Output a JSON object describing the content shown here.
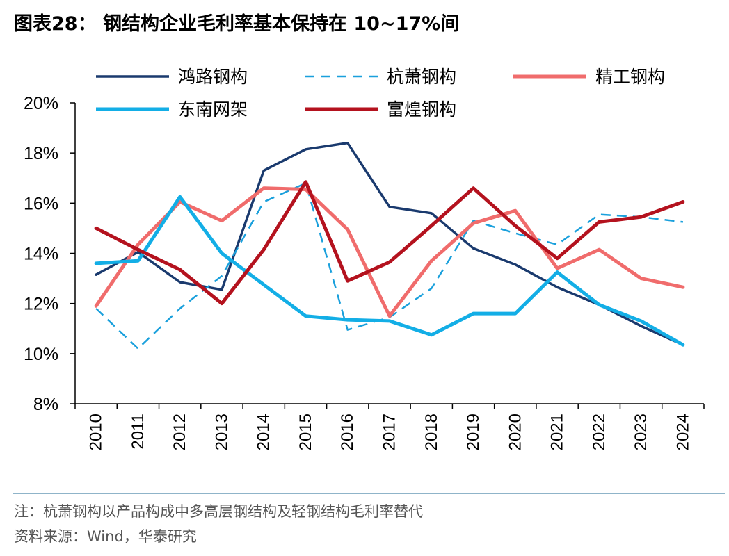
{
  "figure": {
    "title": "图表28： 钢结构企业毛利率基本保持在 10~17%间",
    "note": "注：杭萧钢构以产品构成中多高层钢结构及轻钢结构毛利率替代",
    "source": "资料来源：Wind，华泰研究"
  },
  "colors": {
    "rule": "#8fb4c9",
    "axis": "#000000"
  },
  "chart_data": {
    "type": "line",
    "x": [
      "2010",
      "2011",
      "2012",
      "2013",
      "2014",
      "2015",
      "2016",
      "2017",
      "2018",
      "2019",
      "2020",
      "2021",
      "2022",
      "2023",
      "2024"
    ],
    "ylim": [
      8,
      20
    ],
    "yticks": [
      "8%",
      "10%",
      "12%",
      "14%",
      "16%",
      "18%",
      "20%"
    ],
    "ytick_values": [
      8,
      10,
      12,
      14,
      16,
      18,
      20
    ],
    "grid": false,
    "legend_position": "top",
    "series": [
      {
        "name": "鸿路钢构",
        "color": "#1a3a6e",
        "dash": false,
        "width": 3.5,
        "values": [
          13.15,
          14.05,
          12.85,
          12.55,
          17.3,
          18.15,
          18.4,
          15.85,
          15.6,
          14.2,
          13.55,
          12.65,
          11.95,
          11.1,
          10.35
        ]
      },
      {
        "name": "杭萧钢构",
        "color": "#1aa0dc",
        "dash": true,
        "width": 2.5,
        "values": [
          11.8,
          10.2,
          11.8,
          13.1,
          16.05,
          16.8,
          10.95,
          11.45,
          12.6,
          15.3,
          14.8,
          14.35,
          15.55,
          15.45,
          15.25
        ]
      },
      {
        "name": "精工钢构",
        "color": "#f06c6c",
        "dash": false,
        "width": 5,
        "values": [
          11.9,
          14.35,
          16.05,
          15.3,
          16.6,
          16.55,
          14.95,
          11.5,
          13.7,
          15.2,
          15.7,
          13.4,
          14.15,
          13.0,
          12.65
        ]
      },
      {
        "name": "东南网架",
        "color": "#13aee6",
        "dash": false,
        "width": 5,
        "values": [
          13.6,
          13.7,
          16.25,
          14.0,
          12.75,
          11.5,
          11.35,
          11.3,
          10.75,
          11.6,
          11.6,
          13.25,
          11.95,
          11.3,
          10.35
        ]
      },
      {
        "name": "富煌钢构",
        "color": "#b4121e",
        "dash": false,
        "width": 5,
        "values": [
          15.0,
          14.15,
          13.35,
          12.0,
          14.15,
          16.85,
          12.9,
          13.65,
          15.1,
          16.6,
          15.1,
          13.8,
          15.25,
          15.45,
          16.05
        ]
      }
    ]
  }
}
